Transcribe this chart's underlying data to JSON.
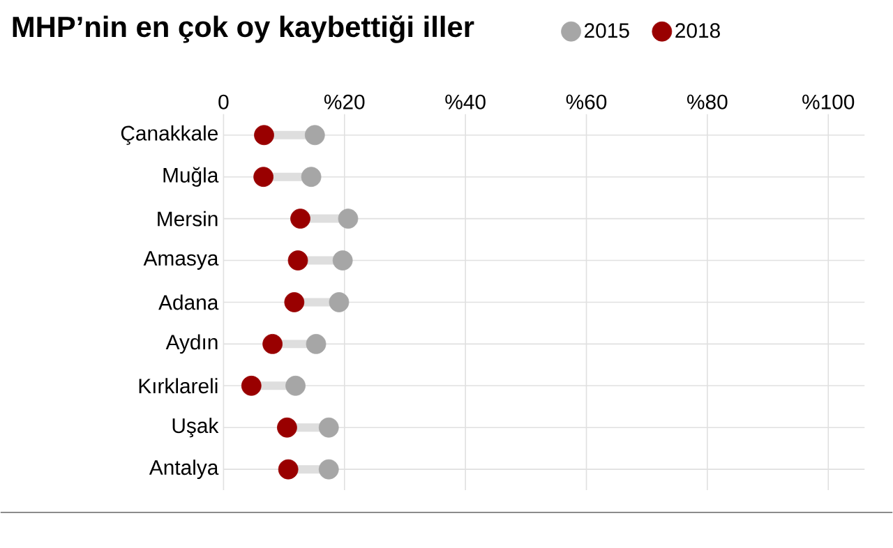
{
  "chart_data": {
    "type": "scatter",
    "title": "MHP’nin en çok oy kaybettiği iller",
    "orientation": "horizontal",
    "categories": [
      "Çanakkale",
      "Muğla",
      "Mersin",
      "Amasya",
      "Adana",
      "Aydın",
      "Kırklareli",
      "Uşak",
      "Antalya"
    ],
    "series": [
      {
        "name": "2015",
        "color": "#a6a6a6",
        "values": [
          15.1,
          14.5,
          20.6,
          19.7,
          19.1,
          15.3,
          11.9,
          17.4,
          17.4
        ]
      },
      {
        "name": "2018",
        "color": "#990000",
        "values": [
          6.7,
          6.6,
          12.7,
          12.3,
          11.7,
          8.1,
          4.6,
          10.5,
          10.7
        ]
      }
    ],
    "xlim": [
      0,
      106
    ],
    "xticks": [
      0,
      {
        "value": 20,
        "label": "%20"
      },
      {
        "value": 40,
        "label": "%40"
      },
      {
        "value": 60,
        "label": "%60"
      },
      {
        "value": 80,
        "label": "%80"
      },
      {
        "value": 100,
        "label": "%100"
      }
    ],
    "grid": true,
    "legend": "top right"
  }
}
